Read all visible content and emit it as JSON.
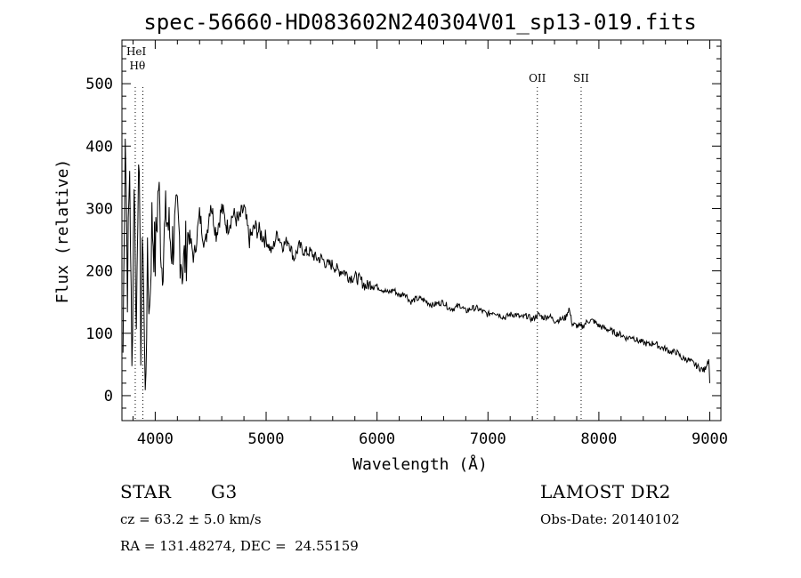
{
  "chart_data": {
    "type": "line",
    "title": "spec-56660-HD083602N240304V01_sp13-019.fits",
    "xlabel": "Wavelength (Å)",
    "ylabel": "Flux (relative)",
    "xlim": [
      3700,
      9100
    ],
    "ylim": [
      -40,
      570
    ],
    "xticks": [
      4000,
      5000,
      6000,
      7000,
      8000,
      9000
    ],
    "yticks": [
      0,
      100,
      200,
      300,
      400,
      500
    ],
    "grid": false,
    "line_markers": [
      {
        "label": "HeI",
        "x": 3820
      },
      {
        "label": "Hθ",
        "x": 3889
      },
      {
        "label": "OII",
        "x": 7445
      },
      {
        "label": "SII",
        "x": 7840
      }
    ],
    "series": [
      {
        "x": [
          3710,
          3730,
          3750,
          3770,
          3790,
          3810,
          3830,
          3850,
          3870,
          3890,
          3910,
          3930,
          3950,
          3970,
          4000,
          4030,
          4060,
          4100,
          4150,
          4200,
          4250,
          4300,
          4350,
          4400,
          4450,
          4500,
          4550,
          4600,
          4650,
          4700,
          4750,
          4800,
          4850,
          4900,
          4950,
          5000,
          5050,
          5100,
          5150,
          5200,
          5250,
          5300,
          5350,
          5400,
          5450,
          5500,
          5550,
          5600,
          5650,
          5700,
          5750,
          5800,
          5850,
          5900,
          5950,
          6000,
          6050,
          6100,
          6150,
          6200,
          6250,
          6300,
          6350,
          6400,
          6450,
          6500,
          6550,
          6600,
          6650,
          6700,
          6750,
          6800,
          6850,
          6900,
          6950,
          7000,
          7050,
          7100,
          7150,
          7200,
          7250,
          7300,
          7350,
          7400,
          7450,
          7500,
          7550,
          7600,
          7650,
          7700,
          7730,
          7760,
          7800,
          7850,
          7900,
          7950,
          8000,
          8050,
          8100,
          8150,
          8200,
          8250,
          8300,
          8350,
          8400,
          8450,
          8500,
          8550,
          8600,
          8650,
          8700,
          8750,
          8800,
          8850,
          8900,
          8950,
          8990,
          9000
        ],
        "y": [
          70,
          440,
          180,
          370,
          30,
          360,
          100,
          420,
          90,
          260,
          -10,
          200,
          140,
          280,
          220,
          340,
          210,
          290,
          240,
          280,
          200,
          260,
          220,
          290,
          240,
          310,
          260,
          300,
          270,
          290,
          280,
          300,
          250,
          270,
          260,
          250,
          230,
          260,
          240,
          250,
          220,
          240,
          230,
          230,
          220,
          220,
          210,
          210,
          200,
          200,
          190,
          190,
          185,
          175,
          180,
          175,
          170,
          165,
          170,
          160,
          165,
          150,
          155,
          155,
          150,
          145,
          148,
          150,
          140,
          140,
          145,
          135,
          140,
          140,
          135,
          130,
          135,
          130,
          125,
          130,
          130,
          125,
          128,
          122,
          130,
          125,
          128,
          120,
          122,
          125,
          140,
          115,
          112,
          110,
          120,
          120,
          112,
          108,
          105,
          100,
          98,
          92,
          95,
          88,
          85,
          82,
          85,
          78,
          75,
          70,
          70,
          60,
          58,
          52,
          45,
          40,
          60,
          20
        ]
      }
    ]
  },
  "info": {
    "object_type": "STAR",
    "subclass": "G3",
    "survey": "LAMOST DR2",
    "cz": "cz = 63.2 ± 5.0 km/s",
    "obs_date": "Obs-Date: 20140102",
    "coords": "RA = 131.48274, DEC =  24.55159"
  }
}
